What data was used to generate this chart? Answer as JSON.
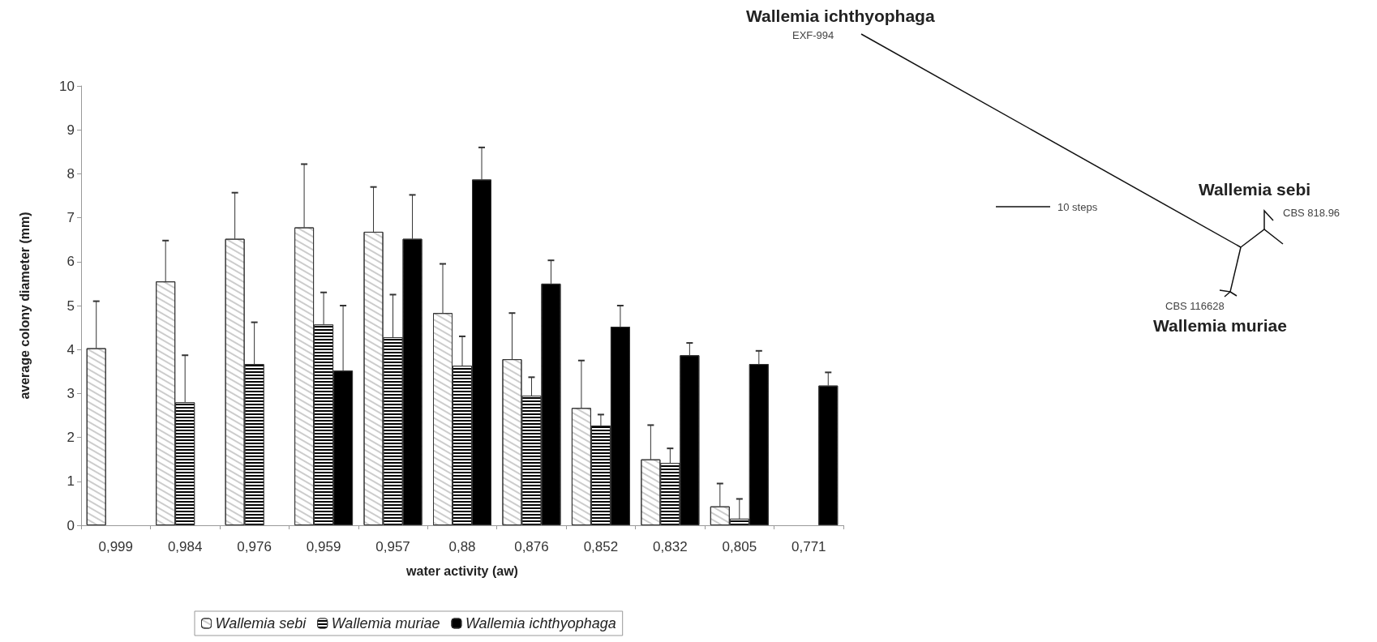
{
  "chart_data": [
    {
      "type": "bar",
      "xlabel": "water activity (aw)",
      "ylabel": "average colony diameter (mm)",
      "categories": [
        "0,999",
        "0,984",
        "0,976",
        "0,959",
        "0,957",
        "0,88",
        "0,876",
        "0,852",
        "0,832",
        "0,805",
        "0,771"
      ],
      "series": [
        {
          "name": "Wallemia sebi",
          "color": "#ffffff",
          "values": [
            4.03,
            5.55,
            6.52,
            6.78,
            6.68,
            4.83,
            3.78,
            2.67,
            1.5,
            0.43,
            null
          ],
          "errors": [
            [
              4.03,
              5.1
            ],
            [
              5.55,
              6.48
            ],
            [
              6.52,
              7.57
            ],
            [
              6.78,
              8.22
            ],
            [
              6.68,
              7.7
            ],
            [
              4.83,
              5.95
            ],
            [
              3.78,
              4.83
            ],
            [
              2.67,
              3.75
            ],
            [
              1.5,
              2.28
            ],
            [
              0.43,
              0.95
            ],
            null
          ]
        },
        {
          "name": "Wallemia muriae",
          "color": "#000000",
          "values": [
            null,
            2.8,
            3.67,
            4.57,
            4.28,
            3.63,
            2.95,
            2.27,
            1.42,
            0.15,
            null
          ],
          "errors": [
            null,
            [
              2.8,
              3.87
            ],
            [
              3.67,
              4.62
            ],
            [
              4.57,
              5.3
            ],
            [
              4.28,
              5.25
            ],
            [
              3.63,
              4.3
            ],
            [
              2.95,
              3.37
            ],
            [
              2.27,
              2.52
            ],
            [
              1.42,
              1.75
            ],
            [
              0.15,
              0.6
            ],
            null
          ]
        },
        {
          "name": "Wallemia ichthyophaga",
          "color": "#000000",
          "values": [
            null,
            null,
            null,
            3.52,
            6.52,
            7.87,
            5.5,
            4.52,
            3.87,
            3.67,
            3.18
          ],
          "errors": [
            null,
            null,
            null,
            [
              3.52,
              5.0
            ],
            [
              6.52,
              7.52
            ],
            [
              7.87,
              8.6
            ],
            [
              5.5,
              6.03
            ],
            [
              4.52,
              5.0
            ],
            [
              3.87,
              4.15
            ],
            [
              3.67,
              3.97
            ],
            [
              3.18,
              3.48
            ]
          ]
        }
      ],
      "ylim": [
        0,
        10
      ],
      "yticks": [
        0,
        1,
        2,
        3,
        4,
        5,
        6,
        7,
        8,
        9,
        10
      ],
      "grid": false,
      "legend": "bottom"
    },
    {
      "type": "other",
      "annotations": [
        "Wallemia ichthyophaga",
        "EXF-994",
        "10 steps",
        "Wallemia sebi",
        "CBS 818.96",
        "CBS 116628",
        "Wallemia muriae"
      ]
    }
  ]
}
